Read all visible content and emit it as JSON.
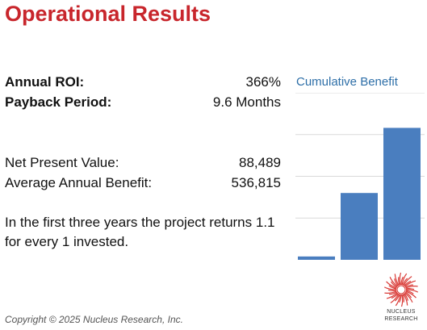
{
  "title": "Operational Results",
  "metrics": {
    "roi_label": "Annual ROI:",
    "roi_value": "366%",
    "payback_label": "Payback Period:",
    "payback_value": "9.6 Months",
    "npv_label": "Net Present Value:",
    "npv_value": "88,489",
    "aab_label": "Average Annual Benefit:",
    "aab_value": "536,815"
  },
  "summary": "In the first three years the project returns 1.1 for every 1 invested.",
  "copyright": "Copyright © 2025 Nucleus Research, Inc.",
  "logo": {
    "line1": "NUCLEUS",
    "line2": "RESEARCH"
  },
  "colors": {
    "title": "#c8262c",
    "bar": "#4a7ebf",
    "chart_title": "#2e6fa8"
  },
  "chart_data": {
    "type": "bar",
    "title": "Cumulative Benefit",
    "categories": [
      "",
      "",
      ""
    ],
    "values": [
      4,
      80,
      158
    ],
    "ylim": [
      0,
      200
    ],
    "grid": true
  }
}
